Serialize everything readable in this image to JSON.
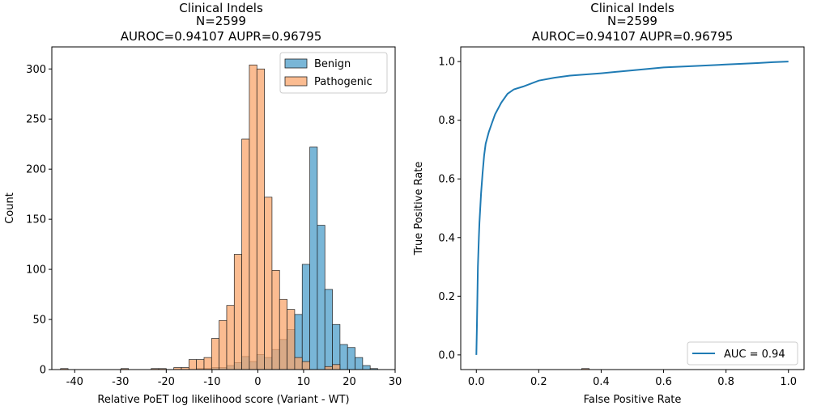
{
  "chart_data": [
    {
      "type": "histogram",
      "title_lines": [
        "Clinical Indels",
        "N=2599",
        "AUROC=0.94107    AUPR=0.96795"
      ],
      "xlabel": "Relative PoET log likelihood score (Variant - WT)",
      "ylabel": "Count",
      "xlim": [
        -45,
        30
      ],
      "ylim": [
        0,
        322
      ],
      "xticks": [
        -40,
        -30,
        -20,
        -10,
        0,
        10,
        20,
        30
      ],
      "yticks": [
        0,
        50,
        100,
        150,
        200,
        250,
        300
      ],
      "legend": {
        "position": "upper right",
        "entries": [
          "Benign",
          "Pathogenic"
        ]
      },
      "bin_width": 1.65,
      "bin_start": -43.1,
      "series": [
        {
          "name": "Benign",
          "color": "#4c9dc9",
          "fill_opacity": 0.75,
          "values": [
            0,
            0,
            0,
            0,
            0,
            0,
            0,
            0,
            0,
            0,
            0,
            0,
            0,
            0,
            0,
            0,
            0,
            0,
            1,
            1,
            2,
            2,
            4,
            7,
            13,
            8,
            15,
            12,
            20,
            30,
            40,
            55,
            105,
            222,
            144,
            80,
            45,
            25,
            22,
            12,
            4,
            1,
            0,
            0,
            0,
            0,
            0,
            0,
            0,
            0,
            0,
            0,
            0,
            0,
            0,
            0,
            0,
            0,
            0,
            0,
            0,
            0,
            0,
            0,
            0,
            0,
            0,
            0,
            0,
            0
          ]
        },
        {
          "name": "Pathogenic",
          "color": "#f9a56c",
          "fill_opacity": 0.75,
          "values": [
            1,
            0,
            0,
            0,
            0,
            0,
            0,
            0,
            1,
            0,
            0,
            0,
            1,
            1,
            0,
            2,
            2,
            10,
            10,
            12,
            31,
            49,
            64,
            115,
            230,
            304,
            300,
            172,
            99,
            70,
            60,
            12,
            8,
            0,
            0,
            3,
            5,
            0,
            0,
            0,
            0,
            0,
            0,
            0,
            0,
            0,
            0,
            0,
            0,
            0,
            0,
            0,
            0,
            0,
            0,
            0,
            0,
            0,
            0,
            0,
            0,
            0,
            0,
            0,
            0,
            0,
            0,
            0,
            0,
            1
          ]
        }
      ]
    },
    {
      "type": "line",
      "title_lines": [
        "Clinical Indels",
        "N=2599",
        "AUROC=0.94107    AUPR=0.96795"
      ],
      "xlabel": "False Positive Rate",
      "ylabel": "True Positive Rate",
      "xlim": [
        -0.05,
        1.05
      ],
      "ylim": [
        -0.05,
        1.05
      ],
      "xticks": [
        0.0,
        0.2,
        0.4,
        0.6,
        0.8,
        1.0
      ],
      "yticks": [
        0.0,
        0.2,
        0.4,
        0.6,
        0.8,
        1.0
      ],
      "legend": {
        "position": "lower right",
        "entries": [
          "AUC = 0.94"
        ]
      },
      "series": [
        {
          "name": "AUC = 0.94",
          "color": "#1f7bb4",
          "x": [
            0,
            0.002,
            0.005,
            0.008,
            0.01,
            0.015,
            0.02,
            0.025,
            0.03,
            0.04,
            0.05,
            0.06,
            0.08,
            0.1,
            0.12,
            0.15,
            0.2,
            0.25,
            0.3,
            0.4,
            0.5,
            0.6,
            0.7,
            0.8,
            0.9,
            0.95,
            1.0
          ],
          "y": [
            0.0,
            0.1,
            0.3,
            0.4,
            0.45,
            0.55,
            0.62,
            0.68,
            0.72,
            0.76,
            0.79,
            0.82,
            0.86,
            0.89,
            0.905,
            0.915,
            0.935,
            0.945,
            0.952,
            0.96,
            0.97,
            0.98,
            0.985,
            0.99,
            0.995,
            0.998,
            1.0
          ]
        }
      ]
    }
  ]
}
